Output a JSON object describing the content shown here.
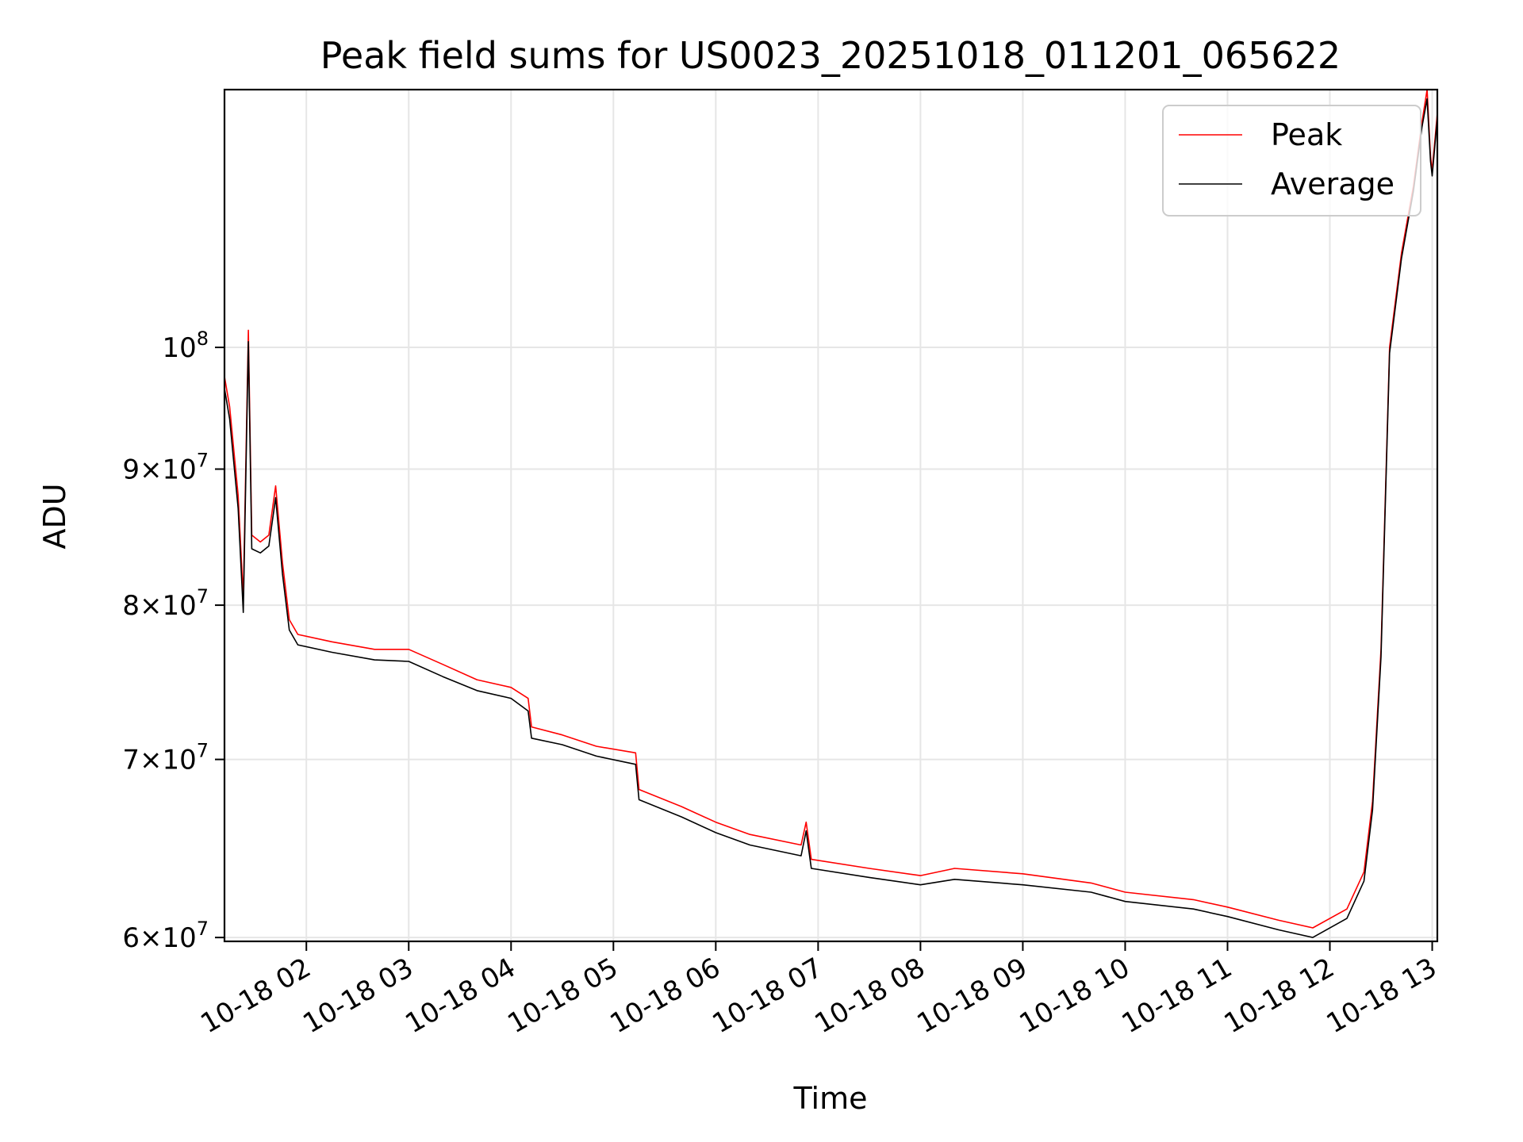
{
  "chart_data": {
    "type": "line",
    "title": "Peak field sums for US0023_20251018_011201_065622",
    "xlabel": "Time",
    "ylabel": "ADU",
    "x_axis": {
      "kind": "datetime",
      "range": [
        "2025-10-18 01:12",
        "2025-10-18 13:03"
      ],
      "ticks": [
        {
          "time": "2025-10-18 02:00",
          "label": "10-18 02"
        },
        {
          "time": "2025-10-18 03:00",
          "label": "10-18 03"
        },
        {
          "time": "2025-10-18 04:00",
          "label": "10-18 04"
        },
        {
          "time": "2025-10-18 05:00",
          "label": "10-18 05"
        },
        {
          "time": "2025-10-18 06:00",
          "label": "10-18 06"
        },
        {
          "time": "2025-10-18 07:00",
          "label": "10-18 07"
        },
        {
          "time": "2025-10-18 08:00",
          "label": "10-18 08"
        },
        {
          "time": "2025-10-18 09:00",
          "label": "10-18 09"
        },
        {
          "time": "2025-10-18 10:00",
          "label": "10-18 10"
        },
        {
          "time": "2025-10-18 11:00",
          "label": "10-18 11"
        },
        {
          "time": "2025-10-18 12:00",
          "label": "10-18 12"
        },
        {
          "time": "2025-10-18 13:00",
          "label": "10-18 13"
        }
      ]
    },
    "y_axis": {
      "scale": "log",
      "range": [
        59800000,
        125000000
      ],
      "ticks": [
        {
          "value": 60000000,
          "mantissa": "6",
          "base": "10",
          "exp": "7"
        },
        {
          "value": 70000000,
          "mantissa": "7",
          "base": "10",
          "exp": "7"
        },
        {
          "value": 80000000,
          "mantissa": "8",
          "base": "10",
          "exp": "7"
        },
        {
          "value": 90000000,
          "mantissa": "9",
          "base": "10",
          "exp": "7"
        },
        {
          "value": 100000000,
          "mantissa": "",
          "base": "10",
          "exp": "8"
        }
      ]
    },
    "grid": true,
    "legend": "top-right",
    "series": [
      {
        "name": "Peak",
        "color": "#ff0000",
        "points": [
          [
            "2025-10-18 01:12",
            97500000
          ],
          [
            "2025-10-18 01:15",
            95000000
          ],
          [
            "2025-10-18 01:20",
            88000000
          ],
          [
            "2025-10-18 01:23",
            80500000
          ],
          [
            "2025-10-18 01:26",
            101500000
          ],
          [
            "2025-10-18 01:28",
            85000000
          ],
          [
            "2025-10-18 01:33",
            84500000
          ],
          [
            "2025-10-18 01:38",
            85000000
          ],
          [
            "2025-10-18 01:42",
            88700000
          ],
          [
            "2025-10-18 01:46",
            83000000
          ],
          [
            "2025-10-18 01:50",
            79000000
          ],
          [
            "2025-10-18 01:55",
            78000000
          ],
          [
            "2025-10-18 02:15",
            77500000
          ],
          [
            "2025-10-18 02:40",
            77000000
          ],
          [
            "2025-10-18 03:00",
            77000000
          ],
          [
            "2025-10-18 03:20",
            76000000
          ],
          [
            "2025-10-18 03:40",
            75000000
          ],
          [
            "2025-10-18 04:00",
            74500000
          ],
          [
            "2025-10-18 04:10",
            73800000
          ],
          [
            "2025-10-18 04:12",
            72000000
          ],
          [
            "2025-10-18 04:30",
            71500000
          ],
          [
            "2025-10-18 04:50",
            70800000
          ],
          [
            "2025-10-18 05:13",
            70400000
          ],
          [
            "2025-10-18 05:15",
            68200000
          ],
          [
            "2025-10-18 05:40",
            67200000
          ],
          [
            "2025-10-18 06:00",
            66300000
          ],
          [
            "2025-10-18 06:20",
            65600000
          ],
          [
            "2025-10-18 06:50",
            65000000
          ],
          [
            "2025-10-18 06:53",
            66300000
          ],
          [
            "2025-10-18 06:56",
            64200000
          ],
          [
            "2025-10-18 07:30",
            63700000
          ],
          [
            "2025-10-18 08:00",
            63300000
          ],
          [
            "2025-10-18 08:20",
            63700000
          ],
          [
            "2025-10-18 09:00",
            63400000
          ],
          [
            "2025-10-18 09:40",
            62900000
          ],
          [
            "2025-10-18 10:00",
            62400000
          ],
          [
            "2025-10-18 10:40",
            62000000
          ],
          [
            "2025-10-18 11:00",
            61600000
          ],
          [
            "2025-10-18 11:30",
            60900000
          ],
          [
            "2025-10-18 11:50",
            60500000
          ],
          [
            "2025-10-18 12:10",
            61500000
          ],
          [
            "2025-10-18 12:20",
            63500000
          ],
          [
            "2025-10-18 12:25",
            67500000
          ],
          [
            "2025-10-18 12:30",
            77000000
          ],
          [
            "2025-10-18 12:35",
            100000000
          ],
          [
            "2025-10-18 12:42",
            108500000
          ],
          [
            "2025-10-18 12:49",
            115000000
          ],
          [
            "2025-10-18 12:54",
            121500000
          ],
          [
            "2025-10-18 12:57",
            125000000
          ],
          [
            "2025-10-18 12:59",
            118000000
          ],
          [
            "2025-10-18 13:00",
            116500000
          ],
          [
            "2025-10-18 13:03",
            122500000
          ]
        ]
      },
      {
        "name": "Average",
        "color": "#000000",
        "points": [
          [
            "2025-10-18 01:12",
            96500000
          ],
          [
            "2025-10-18 01:15",
            94000000
          ],
          [
            "2025-10-18 01:20",
            87000000
          ],
          [
            "2025-10-18 01:23",
            79500000
          ],
          [
            "2025-10-18 01:26",
            100500000
          ],
          [
            "2025-10-18 01:28",
            84000000
          ],
          [
            "2025-10-18 01:33",
            83700000
          ],
          [
            "2025-10-18 01:38",
            84200000
          ],
          [
            "2025-10-18 01:42",
            87800000
          ],
          [
            "2025-10-18 01:46",
            82200000
          ],
          [
            "2025-10-18 01:50",
            78300000
          ],
          [
            "2025-10-18 01:55",
            77300000
          ],
          [
            "2025-10-18 02:15",
            76800000
          ],
          [
            "2025-10-18 02:40",
            76300000
          ],
          [
            "2025-10-18 03:00",
            76200000
          ],
          [
            "2025-10-18 03:20",
            75200000
          ],
          [
            "2025-10-18 03:40",
            74300000
          ],
          [
            "2025-10-18 04:00",
            73800000
          ],
          [
            "2025-10-18 04:10",
            73000000
          ],
          [
            "2025-10-18 04:12",
            71300000
          ],
          [
            "2025-10-18 04:30",
            70900000
          ],
          [
            "2025-10-18 04:50",
            70200000
          ],
          [
            "2025-10-18 05:13",
            69700000
          ],
          [
            "2025-10-18 05:15",
            67600000
          ],
          [
            "2025-10-18 05:40",
            66600000
          ],
          [
            "2025-10-18 06:00",
            65700000
          ],
          [
            "2025-10-18 06:20",
            65000000
          ],
          [
            "2025-10-18 06:50",
            64400000
          ],
          [
            "2025-10-18 06:53",
            65800000
          ],
          [
            "2025-10-18 06:56",
            63700000
          ],
          [
            "2025-10-18 07:30",
            63200000
          ],
          [
            "2025-10-18 08:00",
            62800000
          ],
          [
            "2025-10-18 08:20",
            63100000
          ],
          [
            "2025-10-18 09:00",
            62800000
          ],
          [
            "2025-10-18 09:40",
            62400000
          ],
          [
            "2025-10-18 10:00",
            61900000
          ],
          [
            "2025-10-18 10:40",
            61500000
          ],
          [
            "2025-10-18 11:00",
            61100000
          ],
          [
            "2025-10-18 11:30",
            60400000
          ],
          [
            "2025-10-18 11:50",
            60000000
          ],
          [
            "2025-10-18 12:10",
            61000000
          ],
          [
            "2025-10-18 12:20",
            63000000
          ],
          [
            "2025-10-18 12:25",
            67000000
          ],
          [
            "2025-10-18 12:30",
            76500000
          ],
          [
            "2025-10-18 12:35",
            99500000
          ],
          [
            "2025-10-18 12:42",
            108000000
          ],
          [
            "2025-10-18 12:49",
            114500000
          ],
          [
            "2025-10-18 12:54",
            121000000
          ],
          [
            "2025-10-18 12:57",
            124000000
          ],
          [
            "2025-10-18 12:59",
            117500000
          ],
          [
            "2025-10-18 13:00",
            116000000
          ],
          [
            "2025-10-18 13:03",
            122000000
          ]
        ]
      }
    ]
  }
}
